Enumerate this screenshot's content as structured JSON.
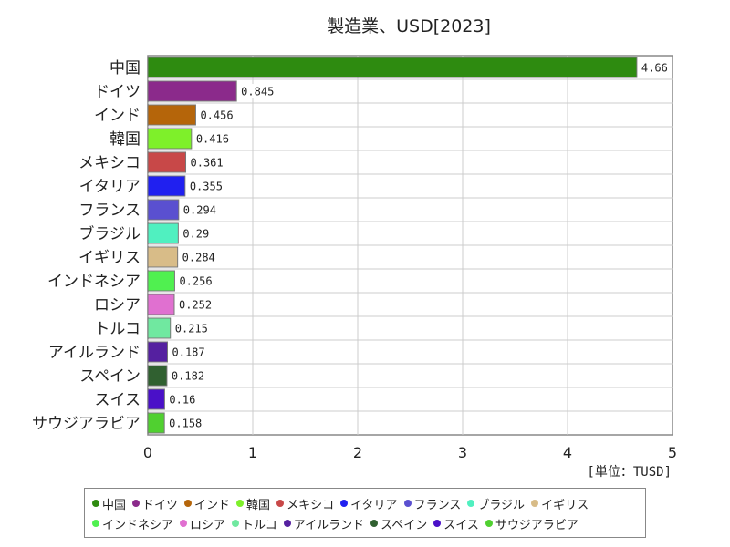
{
  "chart_data": {
    "type": "bar",
    "orientation": "horizontal",
    "title": "製造業、USD[2023]",
    "unit_label": "[単位：TUSD]",
    "xlim": [
      0,
      5
    ],
    "x_ticks": [
      "0",
      "1",
      "2",
      "3",
      "4",
      "5"
    ],
    "grid": true,
    "legend_position": "bottom",
    "categories": [
      "中国",
      "ドイツ",
      "インド",
      "韓国",
      "メキシコ",
      "イタリア",
      "フランス",
      "ブラジル",
      "イギリス",
      "インドネシア",
      "ロシア",
      "トルコ",
      "アイルランド",
      "スペイン",
      "スイス",
      "サウジアラビア"
    ],
    "values": [
      4.66,
      0.845,
      0.456,
      0.416,
      0.361,
      0.355,
      0.294,
      0.29,
      0.284,
      0.256,
      0.252,
      0.215,
      0.187,
      0.182,
      0.16,
      0.158
    ],
    "value_labels": [
      "4.66",
      "0.845",
      "0.456",
      "0.416",
      "0.361",
      "0.355",
      "0.294",
      "0.29",
      "0.284",
      "0.256",
      "0.252",
      "0.215",
      "0.187",
      "0.182",
      "0.16",
      "0.158"
    ],
    "colors": [
      "#2e8b10",
      "#8b2a8b",
      "#b5650a",
      "#7ef02a",
      "#c84848",
      "#2020f0",
      "#5a50d0",
      "#50f0c0",
      "#d8bc88",
      "#50f050",
      "#e070d0",
      "#70e8a0",
      "#5520a0",
      "#306030",
      "#4a10c8",
      "#50d030"
    ]
  }
}
